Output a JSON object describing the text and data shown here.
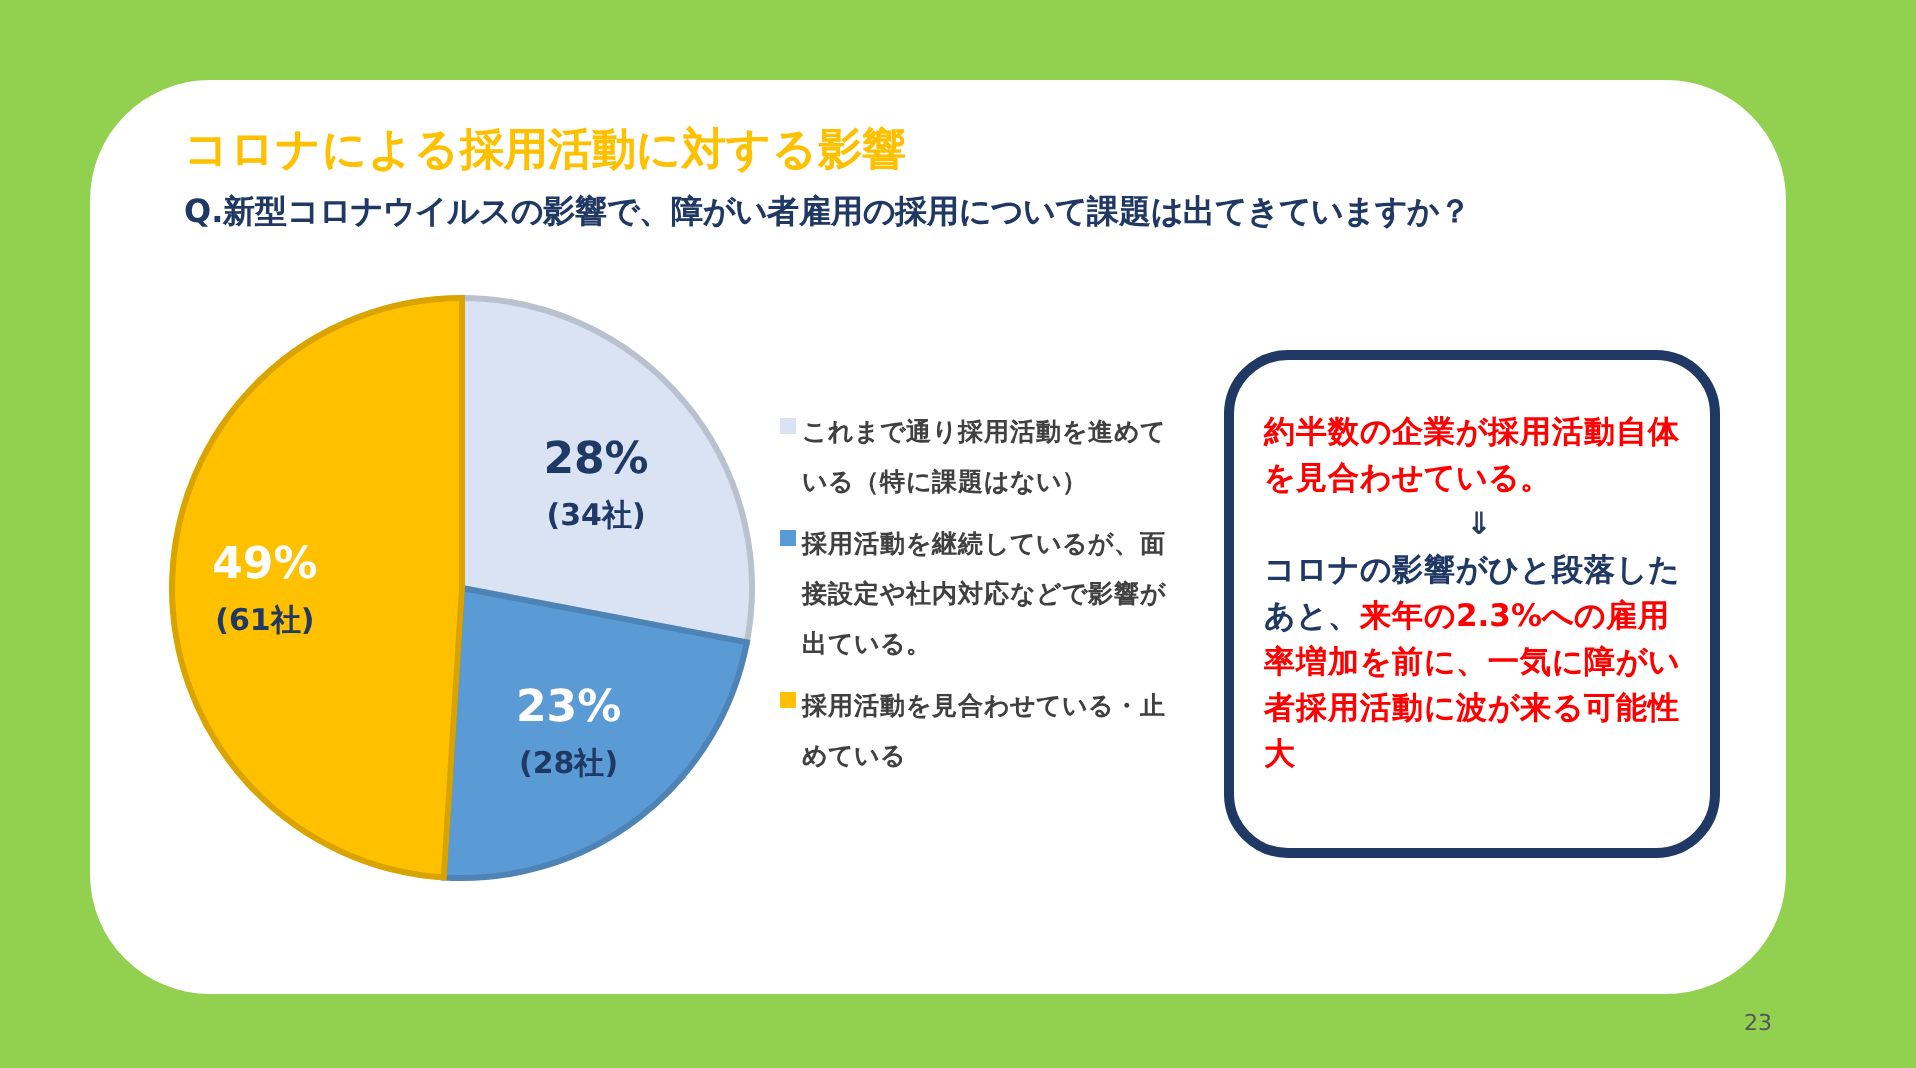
{
  "chart_data": {
    "type": "pie",
    "title": "コロナによる採用活動に対する影響",
    "subtitle": "Q.新型コロナウイルスの影響で、障がい者雇用の採用について課題は出てきていますか？",
    "categories": [
      "これまで通り採用活動を進めている（特に課題はない）",
      "採用活動を継続しているが、面接設定や社内対応などで影響が出ている。",
      "採用活動を見合わせている・止めている"
    ],
    "values": [
      28,
      23,
      49
    ],
    "colors": [
      "#dae3f3",
      "#5b9bd5",
      "#ffc000"
    ],
    "value_labels": [
      "28%\n(34社)",
      "23%\n(28社)",
      "49%\n(61社)"
    ],
    "legend": "right",
    "annotations": [
      "約半数の企業が採用活動自体を見合わせている。",
      "⇓",
      "コロナの影響がひと段落したあと、",
      "来年の2.3%への雇用率増加を前に、一気に障がい者採用活動に波が来る可能性大",
      "23"
    ]
  }
}
